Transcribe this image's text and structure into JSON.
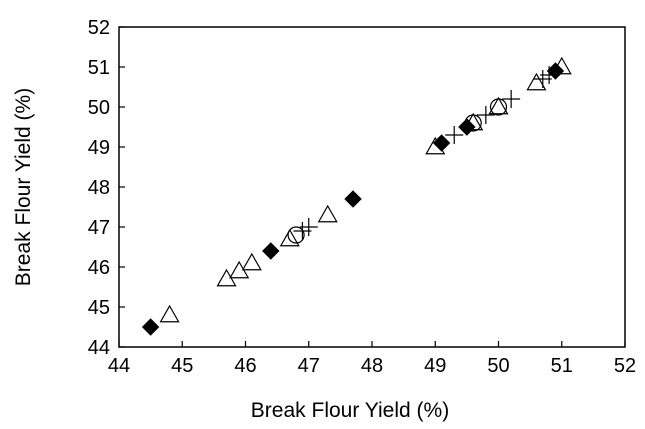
{
  "chart_data": {
    "type": "scatter",
    "title": "",
    "xlabel": "Break Flour Yield (%)",
    "ylabel": "Break  Flour Yield (%)",
    "xlim": [
      44,
      52
    ],
    "ylim": [
      44,
      52
    ],
    "xticks": [
      "44",
      "45",
      "46",
      "47",
      "48",
      "49",
      "50",
      "51",
      "52"
    ],
    "yticks": [
      "44",
      "45",
      "46",
      "47",
      "48",
      "49",
      "50",
      "51",
      "52"
    ],
    "grid": false,
    "legend": "none",
    "series": [
      {
        "marker": "filled-diamond",
        "color": "#000000",
        "points": [
          [
            44.5,
            44.5
          ],
          [
            46.4,
            46.4
          ],
          [
            47.7,
            47.7
          ],
          [
            49.1,
            49.1
          ],
          [
            49.5,
            49.5
          ],
          [
            50.9,
            50.9
          ]
        ]
      },
      {
        "marker": "open-triangle",
        "color": "#000000",
        "points": [
          [
            44.8,
            44.8
          ],
          [
            45.7,
            45.7
          ],
          [
            45.9,
            45.9
          ],
          [
            46.1,
            46.1
          ],
          [
            46.7,
            46.7
          ],
          [
            47.3,
            47.3
          ],
          [
            49.0,
            49.0
          ],
          [
            49.6,
            49.6
          ],
          [
            50.0,
            50.0
          ],
          [
            50.6,
            50.6
          ],
          [
            51.0,
            51.0
          ]
        ]
      },
      {
        "marker": "open-circle",
        "color": "#000000",
        "points": [
          [
            46.8,
            46.8
          ],
          [
            49.6,
            49.6
          ],
          [
            50.0,
            50.0
          ]
        ]
      },
      {
        "marker": "plus",
        "color": "#000000",
        "points": [
          [
            46.9,
            46.9
          ],
          [
            47.0,
            47.0
          ],
          [
            49.3,
            49.3
          ],
          [
            49.8,
            49.8
          ],
          [
            50.2,
            50.2
          ],
          [
            50.7,
            50.7
          ],
          [
            50.8,
            50.8
          ]
        ]
      }
    ]
  }
}
